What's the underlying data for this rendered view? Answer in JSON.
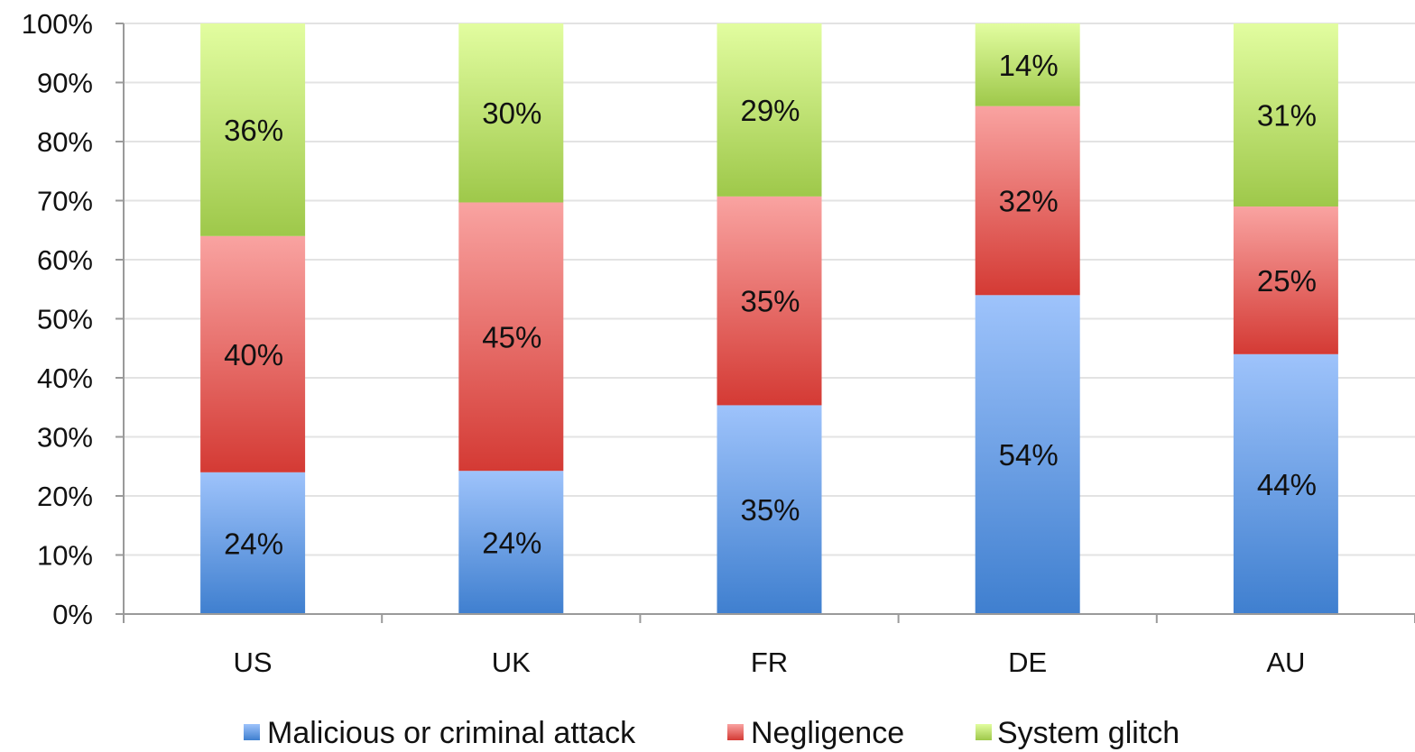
{
  "chart_data": {
    "type": "bar",
    "stacked": true,
    "percent_stacked": true,
    "categories": [
      "US",
      "UK",
      "FR",
      "DE",
      "AU"
    ],
    "series": [
      {
        "name": "Malicious or criminal attack",
        "values": [
          24,
          24,
          35,
          54,
          44
        ],
        "labels": [
          "24%",
          "24%",
          "35%",
          "54%",
          "44%"
        ],
        "color_top": "#9ec3fb",
        "color_bottom": "#3f7fcf"
      },
      {
        "name": "Negligence",
        "values": [
          40,
          45,
          35,
          32,
          25
        ],
        "labels": [
          "40%",
          "45%",
          "35%",
          "32%",
          "25%"
        ],
        "color_top": "#f9a3a1",
        "color_bottom": "#d43a34"
      },
      {
        "name": "System glitch",
        "values": [
          36,
          30,
          29,
          14,
          31
        ],
        "labels": [
          "36%",
          "30%",
          "29%",
          "14%",
          "31%"
        ],
        "color_top": "#e2fda0",
        "color_bottom": "#9ec84a"
      }
    ],
    "yticks": [
      "0%",
      "10%",
      "20%",
      "30%",
      "40%",
      "50%",
      "60%",
      "70%",
      "80%",
      "90%",
      "100%"
    ],
    "ylim": [
      0,
      100
    ],
    "title": "",
    "xlabel": "",
    "ylabel": "",
    "grid": true,
    "legend_position": "bottom"
  }
}
